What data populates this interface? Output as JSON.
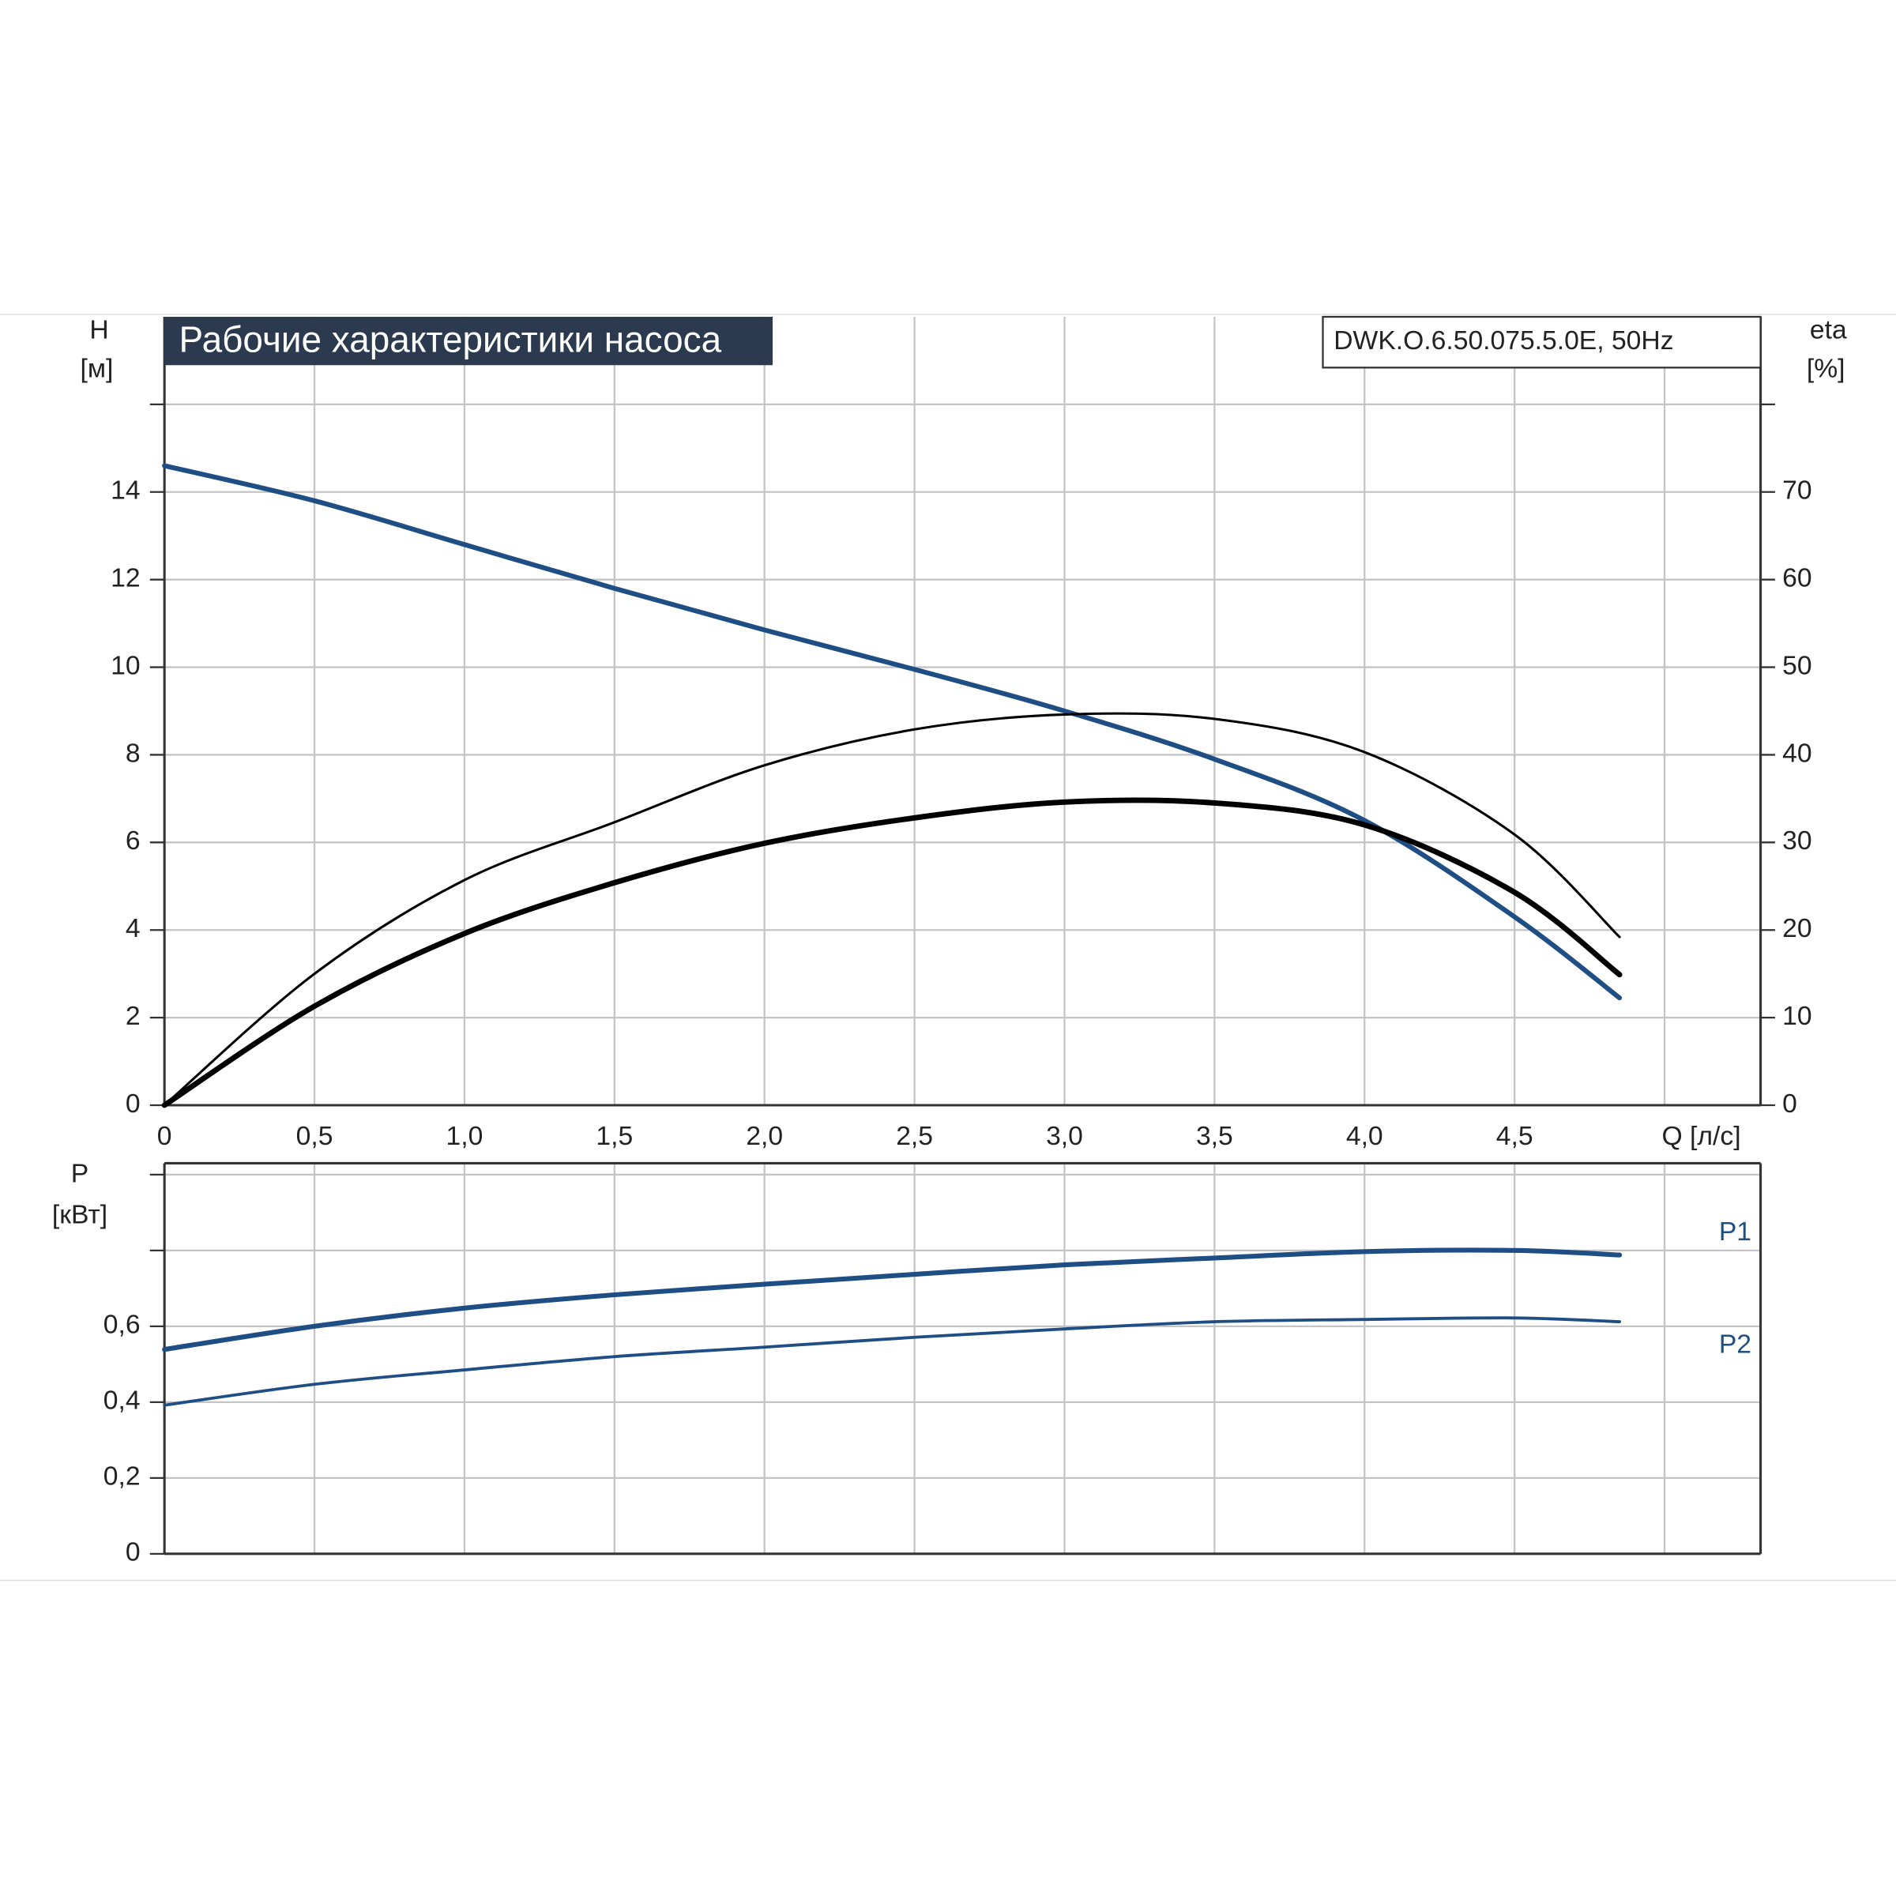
{
  "chart_data": [
    {
      "type": "line",
      "title": "Рабочие характеристики насоса",
      "subtitle": "DWK.O.6.50.075.5.0E, 50Hz",
      "y_label": "H",
      "y_unit": "[м]",
      "y2_label": "eta",
      "y2_unit": "[%]",
      "x_label": "Q [л/с]",
      "x": [
        0,
        0.5,
        1.0,
        1.5,
        2.0,
        2.5,
        3.0,
        3.5,
        4.0,
        4.5,
        4.85
      ],
      "series": [
        {
          "color": "#1f4e84",
          "width": 4,
          "values": [
            14.6,
            13.8,
            12.8,
            11.8,
            10.85,
            9.95,
            9.0,
            7.9,
            6.5,
            4.3,
            2.45
          ]
        },
        {
          "color": "#000000",
          "width": 2,
          "axis": "y2",
          "values": [
            0,
            15.0,
            25.7,
            32.3,
            38.8,
            42.9,
            44.6,
            44.1,
            40.3,
            30.9,
            19.2
          ]
        },
        {
          "color": "#000000",
          "width": 4.5,
          "axis": "y2",
          "values": [
            0,
            11.3,
            19.6,
            25.4,
            29.9,
            32.8,
            34.6,
            34.5,
            32.0,
            24.3,
            14.9
          ]
        }
      ],
      "xlim": [
        0,
        5.32
      ],
      "xticks": [
        0,
        {
          "value": 0.5,
          "label": "0,5"
        },
        {
          "value": 1.0,
          "label": "1,0"
        },
        {
          "value": 1.5,
          "label": "1,5"
        },
        {
          "value": 2.0,
          "label": "2,0"
        },
        {
          "value": 2.5,
          "label": "2,5"
        },
        {
          "value": 3.0,
          "label": "3,0"
        },
        {
          "value": 3.5,
          "label": "3,5"
        },
        {
          "value": 4.0,
          "label": "4,0"
        },
        {
          "value": 4.5,
          "label": "4,5"
        },
        {
          "value": 5.0,
          "label": null
        }
      ],
      "ylim": [
        0,
        18
      ],
      "yticks": [
        0,
        2,
        4,
        6,
        8,
        10,
        12,
        14,
        {
          "value": 16,
          "label": null
        }
      ],
      "y2lim": [
        0,
        90
      ],
      "y2ticks": [
        0,
        10,
        20,
        30,
        40,
        50,
        60,
        70,
        {
          "value": 80,
          "label": null
        }
      ],
      "grid": true
    },
    {
      "type": "line",
      "y_label": "P",
      "y_unit": "[кВт]",
      "x": [
        0,
        0.5,
        1.0,
        1.5,
        2.0,
        2.5,
        3.0,
        3.5,
        4.0,
        4.5,
        4.85
      ],
      "series": [
        {
          "name": "P1",
          "color": "#1f4e84",
          "width": 4,
          "values": [
            0.539,
            0.6,
            0.648,
            0.683,
            0.711,
            0.737,
            0.762,
            0.78,
            0.797,
            0.8,
            0.788
          ]
        },
        {
          "name": "P2",
          "color": "#1f4e84",
          "width": 2.5,
          "values": [
            0.392,
            0.447,
            0.485,
            0.52,
            0.545,
            0.571,
            0.593,
            0.612,
            0.618,
            0.622,
            0.612
          ]
        }
      ],
      "xlim": [
        0,
        5.32
      ],
      "xticks": [
        {
          "value": 0.5,
          "label": null
        },
        {
          "value": 1.0,
          "label": null
        },
        {
          "value": 1.5,
          "label": null
        },
        {
          "value": 2.0,
          "label": null
        },
        {
          "value": 2.5,
          "label": null
        },
        {
          "value": 3.0,
          "label": null
        },
        {
          "value": 3.5,
          "label": null
        },
        {
          "value": 4.0,
          "label": null
        },
        {
          "value": 4.5,
          "label": null
        },
        {
          "value": 5.0,
          "label": null
        }
      ],
      "ylim": [
        0,
        1.03
      ],
      "yticks": [
        0,
        {
          "value": 0.2,
          "label": "0,2"
        },
        {
          "value": 0.4,
          "label": "0,4"
        },
        {
          "value": 0.6,
          "label": "0,6"
        },
        {
          "value": 0.8,
          "label": null
        },
        {
          "value": 1.0,
          "label": null
        }
      ],
      "grid": true
    }
  ]
}
